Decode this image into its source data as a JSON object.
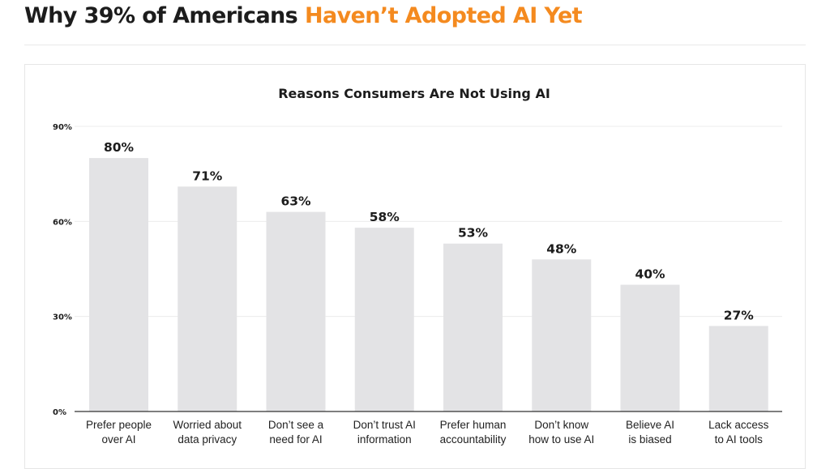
{
  "header": {
    "title_prefix": "Why 39% of Americans ",
    "title_highlight": "Haven’t Adopted AI Yet"
  },
  "colors": {
    "accent": "#f48a1f",
    "bar": "#e3e3e5",
    "text": "#1c1c1c"
  },
  "chart_data": {
    "type": "bar",
    "title": "Reasons Consumers Are Not Using AI",
    "xlabel": "",
    "ylabel": "",
    "ylim": [
      0,
      90
    ],
    "yticks": [
      "0%",
      "30%",
      "60%",
      "90%"
    ],
    "ytick_values": [
      0,
      30,
      60,
      90
    ],
    "grid": true,
    "categories": [
      [
        "Prefer people",
        "over AI"
      ],
      [
        "Worried about",
        "data privacy"
      ],
      [
        "Don’t see a",
        "need for AI"
      ],
      [
        "Don’t trust AI",
        "information"
      ],
      [
        "Prefer human",
        "accountability"
      ],
      [
        "Don’t know",
        "how to use AI"
      ],
      [
        "Believe AI",
        "is biased"
      ],
      [
        "Lack access",
        "to AI tools"
      ]
    ],
    "values": [
      80,
      71,
      63,
      58,
      53,
      48,
      40,
      27
    ],
    "value_labels": [
      "80%",
      "71%",
      "63%",
      "58%",
      "53%",
      "48%",
      "40%",
      "27%"
    ]
  }
}
